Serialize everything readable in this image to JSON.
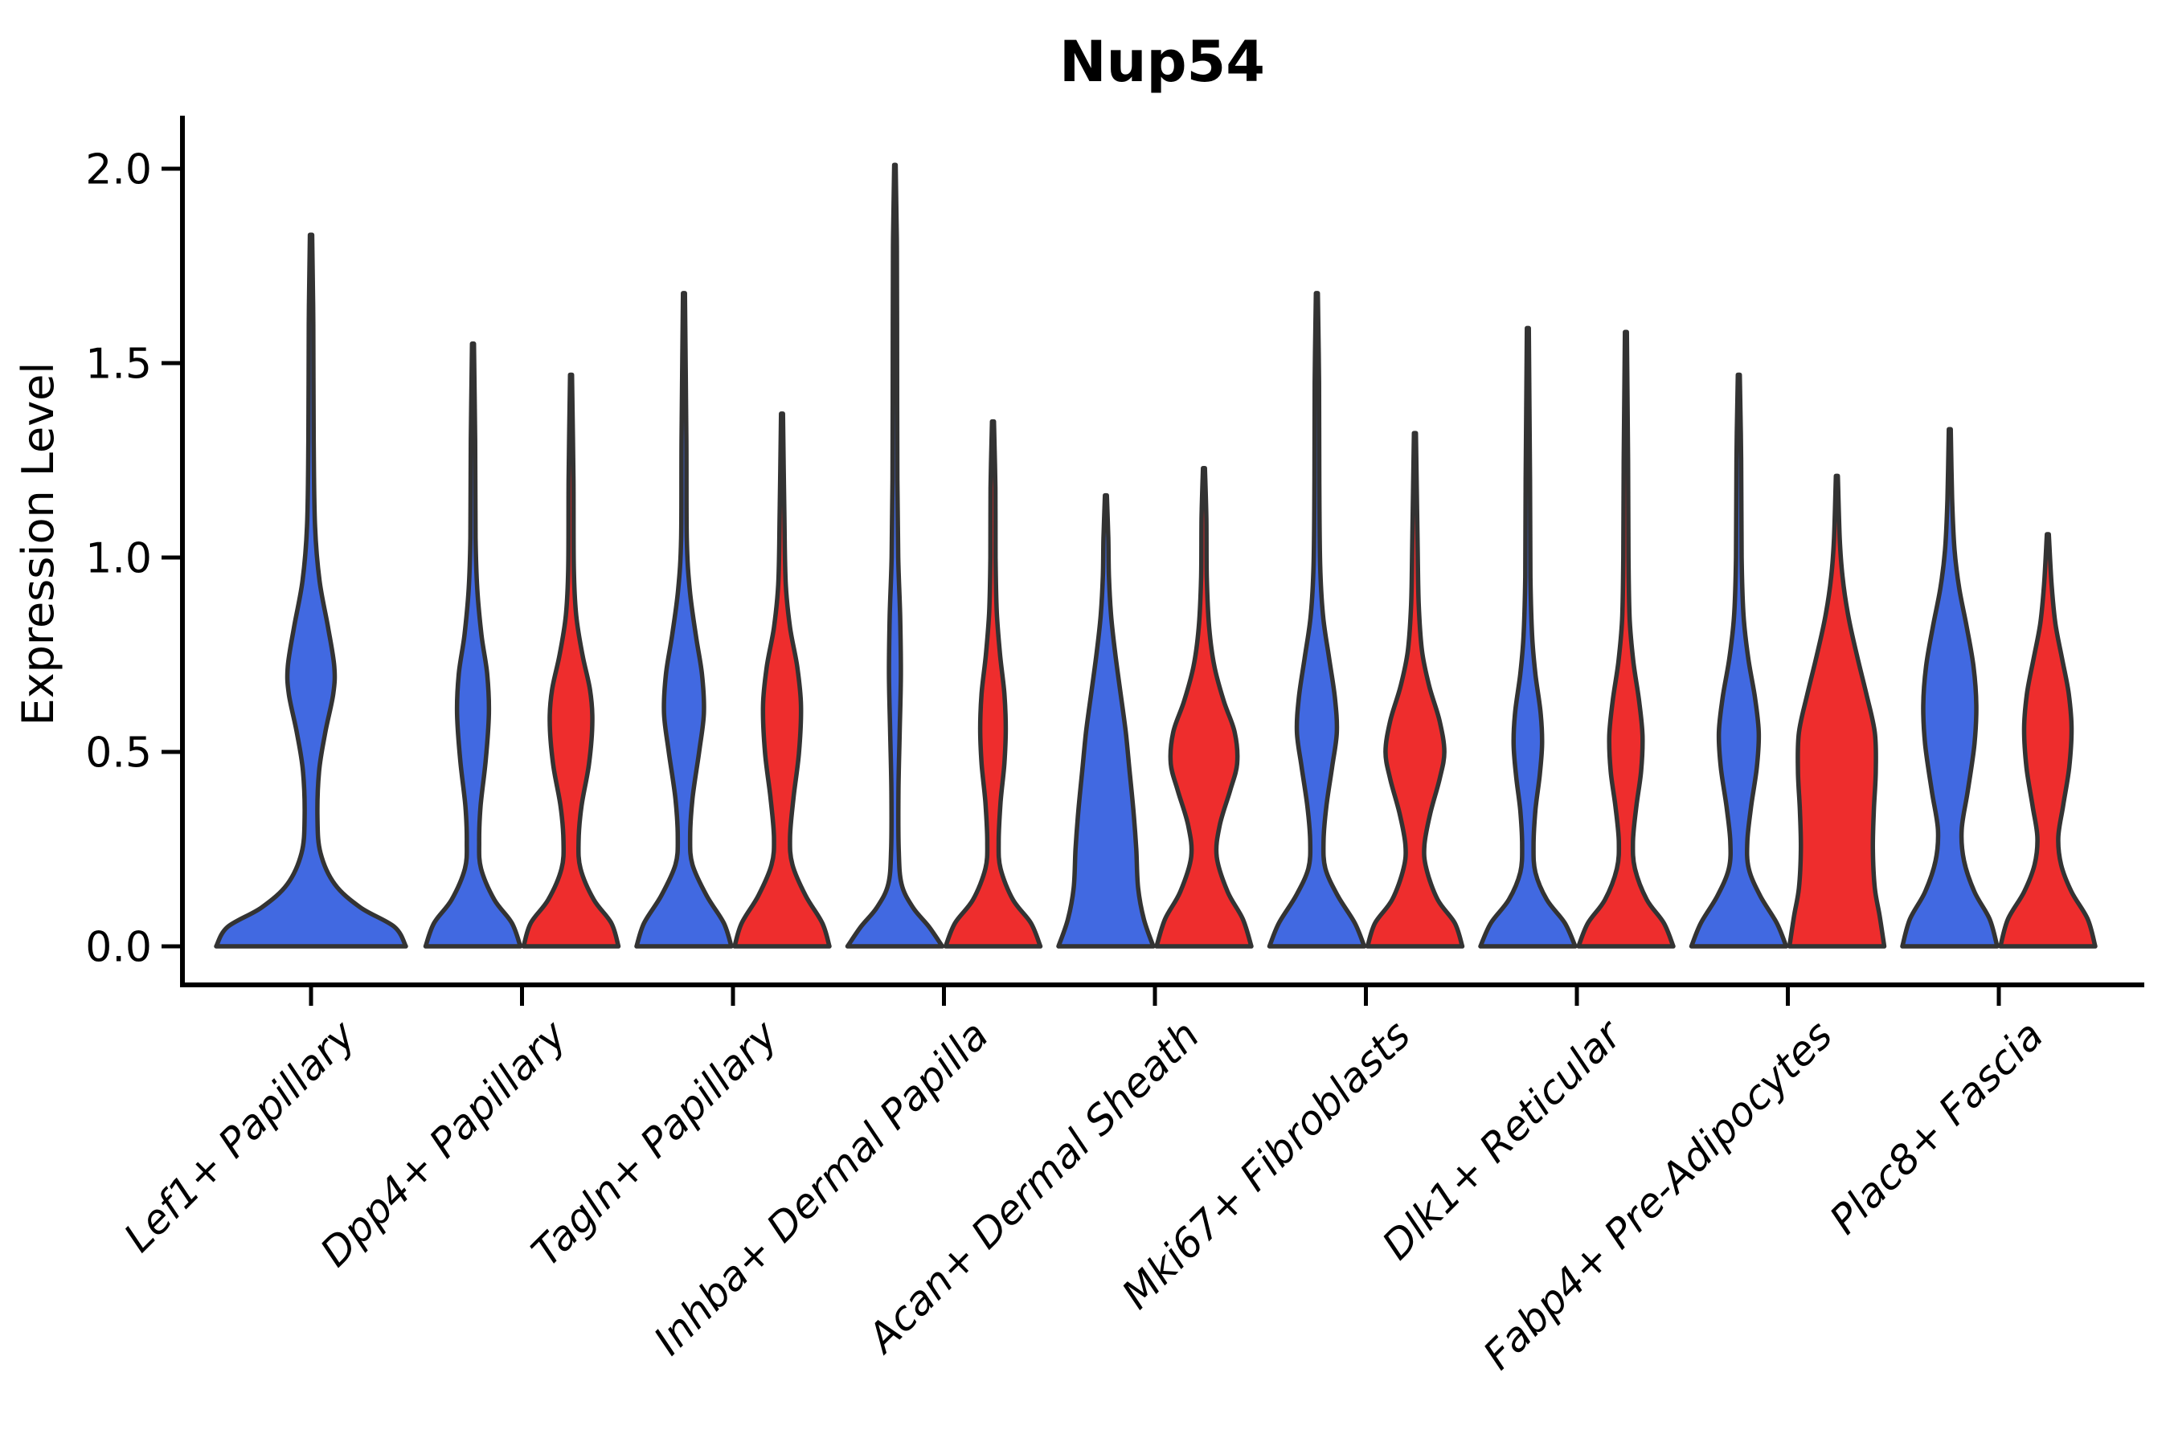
{
  "title": "Nup54",
  "y_axis": {
    "label": "Expression Level",
    "tick_labels": [
      "0.0",
      "0.5",
      "1.0",
      "1.5",
      "2.0"
    ],
    "tick_values": [
      0.0,
      0.5,
      1.0,
      1.5,
      2.0
    ]
  },
  "x_axis": {
    "categories": [
      "Lef1+ Papillary",
      "Dpp4+ Papillary",
      "Tagln+ Papillary",
      "Inhba+ Dermal Papilla",
      "Acan+ Dermal Sheath",
      "Mki67+ Fibroblasts",
      "Dlk1+ Reticular",
      "Fabp4+ Pre-Adipocytes",
      "Plac8+ Fascia"
    ]
  },
  "colors": {
    "blue": "#4169E1",
    "red": "#EE2D2D",
    "outline": "#333333",
    "axis": "#000000"
  },
  "chart_data": {
    "type": "violin",
    "title": "Nup54",
    "xlabel": "",
    "ylabel": "Expression Level",
    "ylim": [
      0,
      2.1
    ],
    "yticks": [
      0.0,
      0.5,
      1.0,
      1.5,
      2.0
    ],
    "grid": "off",
    "legend_position": "none",
    "categories": [
      "Lef1+ Papillary",
      "Dpp4+ Papillary",
      "Tagln+ Papillary",
      "Inhba+ Dermal Papilla",
      "Acan+ Dermal Sheath",
      "Mki67+ Fibroblasts",
      "Dlk1+ Reticular",
      "Fabp4+ Pre-Adipocytes",
      "Plac8+ Fascia"
    ],
    "series": [
      {
        "name": "blue",
        "color": "#4169E1",
        "max_expression": [
          1.83,
          1.55,
          1.68,
          2.01,
          1.16,
          1.68,
          1.59,
          1.47,
          1.33
        ]
      },
      {
        "name": "red",
        "color": "#EE2D2D",
        "max_expression": [
          null,
          1.47,
          1.37,
          1.35,
          1.23,
          1.32,
          1.58,
          1.21,
          1.06
        ]
      }
    ],
    "violins": [
      {
        "category_index": 0,
        "series": "blue",
        "side": "full",
        "profile": [
          [
            0,
            1.0
          ],
          [
            0.05,
            0.88
          ],
          [
            0.1,
            0.52
          ],
          [
            0.16,
            0.25
          ],
          [
            0.24,
            0.1
          ],
          [
            0.33,
            0.068
          ],
          [
            0.45,
            0.085
          ],
          [
            0.55,
            0.15
          ],
          [
            0.65,
            0.235
          ],
          [
            0.72,
            0.245
          ],
          [
            0.82,
            0.18
          ],
          [
            0.94,
            0.09
          ],
          [
            1.08,
            0.042
          ],
          [
            1.3,
            0.028
          ],
          [
            1.6,
            0.024
          ],
          [
            1.83,
            0.012
          ]
        ]
      },
      {
        "category_index": 1,
        "series": "blue",
        "side": "left",
        "profile": [
          [
            0,
            1.0
          ],
          [
            0.06,
            0.82
          ],
          [
            0.12,
            0.45
          ],
          [
            0.2,
            0.17
          ],
          [
            0.27,
            0.13
          ],
          [
            0.36,
            0.16
          ],
          [
            0.48,
            0.27
          ],
          [
            0.6,
            0.335
          ],
          [
            0.7,
            0.3
          ],
          [
            0.8,
            0.18
          ],
          [
            0.92,
            0.09
          ],
          [
            1.05,
            0.055
          ],
          [
            1.3,
            0.045
          ],
          [
            1.55,
            0.02
          ]
        ]
      },
      {
        "category_index": 1,
        "series": "red",
        "side": "right",
        "profile": [
          [
            0,
            1.0
          ],
          [
            0.06,
            0.85
          ],
          [
            0.12,
            0.48
          ],
          [
            0.2,
            0.2
          ],
          [
            0.27,
            0.16
          ],
          [
            0.36,
            0.22
          ],
          [
            0.47,
            0.38
          ],
          [
            0.58,
            0.45
          ],
          [
            0.66,
            0.4
          ],
          [
            0.75,
            0.24
          ],
          [
            0.85,
            0.11
          ],
          [
            0.97,
            0.06
          ],
          [
            1.2,
            0.05
          ],
          [
            1.47,
            0.02
          ]
        ]
      },
      {
        "category_index": 2,
        "series": "blue",
        "side": "left",
        "profile": [
          [
            0,
            1.0
          ],
          [
            0.06,
            0.84
          ],
          [
            0.13,
            0.48
          ],
          [
            0.21,
            0.18
          ],
          [
            0.28,
            0.13
          ],
          [
            0.38,
            0.18
          ],
          [
            0.5,
            0.32
          ],
          [
            0.6,
            0.42
          ],
          [
            0.7,
            0.38
          ],
          [
            0.8,
            0.25
          ],
          [
            0.92,
            0.12
          ],
          [
            1.05,
            0.06
          ],
          [
            1.3,
            0.05
          ],
          [
            1.68,
            0.02
          ]
        ]
      },
      {
        "category_index": 2,
        "series": "red",
        "side": "right",
        "profile": [
          [
            0,
            1.0
          ],
          [
            0.06,
            0.85
          ],
          [
            0.13,
            0.5
          ],
          [
            0.21,
            0.22
          ],
          [
            0.28,
            0.17
          ],
          [
            0.38,
            0.24
          ],
          [
            0.5,
            0.36
          ],
          [
            0.62,
            0.4
          ],
          [
            0.72,
            0.32
          ],
          [
            0.82,
            0.17
          ],
          [
            0.93,
            0.08
          ],
          [
            1.1,
            0.05
          ],
          [
            1.37,
            0.02
          ]
        ]
      },
      {
        "category_index": 3,
        "series": "blue",
        "side": "left",
        "profile": [
          [
            0,
            1.0
          ],
          [
            0.05,
            0.72
          ],
          [
            0.1,
            0.38
          ],
          [
            0.16,
            0.14
          ],
          [
            0.25,
            0.08
          ],
          [
            0.4,
            0.075
          ],
          [
            0.55,
            0.1
          ],
          [
            0.7,
            0.125
          ],
          [
            0.85,
            0.11
          ],
          [
            1.0,
            0.07
          ],
          [
            1.2,
            0.05
          ],
          [
            1.5,
            0.045
          ],
          [
            1.8,
            0.04
          ],
          [
            2.01,
            0.015
          ]
        ]
      },
      {
        "category_index": 3,
        "series": "red",
        "side": "right",
        "profile": [
          [
            0,
            1.0
          ],
          [
            0.06,
            0.8
          ],
          [
            0.12,
            0.42
          ],
          [
            0.2,
            0.16
          ],
          [
            0.27,
            0.12
          ],
          [
            0.37,
            0.16
          ],
          [
            0.47,
            0.24
          ],
          [
            0.56,
            0.27
          ],
          [
            0.65,
            0.24
          ],
          [
            0.75,
            0.15
          ],
          [
            0.86,
            0.08
          ],
          [
            1.0,
            0.055
          ],
          [
            1.18,
            0.05
          ],
          [
            1.35,
            0.02
          ]
        ]
      },
      {
        "category_index": 4,
        "series": "blue",
        "side": "left",
        "profile": [
          [
            0,
            1.0
          ],
          [
            0.07,
            0.8
          ],
          [
            0.15,
            0.68
          ],
          [
            0.25,
            0.64
          ],
          [
            0.35,
            0.58
          ],
          [
            0.45,
            0.5
          ],
          [
            0.55,
            0.42
          ],
          [
            0.65,
            0.31
          ],
          [
            0.75,
            0.2
          ],
          [
            0.85,
            0.11
          ],
          [
            0.95,
            0.065
          ],
          [
            1.05,
            0.05
          ],
          [
            1.16,
            0.02
          ]
        ]
      },
      {
        "category_index": 4,
        "series": "red",
        "side": "right",
        "profile": [
          [
            0,
            1.0
          ],
          [
            0.07,
            0.82
          ],
          [
            0.14,
            0.5
          ],
          [
            0.23,
            0.27
          ],
          [
            0.31,
            0.33
          ],
          [
            0.4,
            0.55
          ],
          [
            0.47,
            0.7
          ],
          [
            0.55,
            0.65
          ],
          [
            0.63,
            0.42
          ],
          [
            0.72,
            0.22
          ],
          [
            0.82,
            0.11
          ],
          [
            0.95,
            0.06
          ],
          [
            1.1,
            0.05
          ],
          [
            1.23,
            0.02
          ]
        ]
      },
      {
        "category_index": 5,
        "series": "blue",
        "side": "left",
        "profile": [
          [
            0,
            1.0
          ],
          [
            0.06,
            0.8
          ],
          [
            0.13,
            0.44
          ],
          [
            0.2,
            0.18
          ],
          [
            0.27,
            0.14
          ],
          [
            0.36,
            0.2
          ],
          [
            0.46,
            0.32
          ],
          [
            0.55,
            0.42
          ],
          [
            0.64,
            0.38
          ],
          [
            0.74,
            0.26
          ],
          [
            0.85,
            0.13
          ],
          [
            0.98,
            0.07
          ],
          [
            1.2,
            0.05
          ],
          [
            1.45,
            0.045
          ],
          [
            1.68,
            0.02
          ]
        ]
      },
      {
        "category_index": 5,
        "series": "red",
        "side": "right",
        "profile": [
          [
            0,
            1.0
          ],
          [
            0.06,
            0.84
          ],
          [
            0.12,
            0.48
          ],
          [
            0.2,
            0.24
          ],
          [
            0.26,
            0.2
          ],
          [
            0.34,
            0.32
          ],
          [
            0.43,
            0.52
          ],
          [
            0.5,
            0.62
          ],
          [
            0.58,
            0.52
          ],
          [
            0.67,
            0.3
          ],
          [
            0.76,
            0.15
          ],
          [
            0.88,
            0.08
          ],
          [
            1.05,
            0.055
          ],
          [
            1.32,
            0.02
          ]
        ]
      },
      {
        "category_index": 6,
        "series": "blue",
        "side": "left",
        "profile": [
          [
            0,
            1.0
          ],
          [
            0.06,
            0.78
          ],
          [
            0.12,
            0.4
          ],
          [
            0.19,
            0.16
          ],
          [
            0.26,
            0.12
          ],
          [
            0.35,
            0.16
          ],
          [
            0.44,
            0.25
          ],
          [
            0.52,
            0.3
          ],
          [
            0.6,
            0.27
          ],
          [
            0.7,
            0.16
          ],
          [
            0.8,
            0.09
          ],
          [
            0.95,
            0.055
          ],
          [
            1.2,
            0.045
          ],
          [
            1.59,
            0.02
          ]
        ]
      },
      {
        "category_index": 6,
        "series": "red",
        "side": "right",
        "profile": [
          [
            0,
            1.0
          ],
          [
            0.06,
            0.8
          ],
          [
            0.12,
            0.44
          ],
          [
            0.2,
            0.19
          ],
          [
            0.27,
            0.15
          ],
          [
            0.36,
            0.22
          ],
          [
            0.45,
            0.32
          ],
          [
            0.54,
            0.35
          ],
          [
            0.63,
            0.28
          ],
          [
            0.73,
            0.16
          ],
          [
            0.84,
            0.08
          ],
          [
            1.0,
            0.055
          ],
          [
            1.25,
            0.045
          ],
          [
            1.58,
            0.02
          ]
        ]
      },
      {
        "category_index": 7,
        "series": "blue",
        "side": "left",
        "profile": [
          [
            0,
            1.0
          ],
          [
            0.06,
            0.8
          ],
          [
            0.13,
            0.45
          ],
          [
            0.2,
            0.21
          ],
          [
            0.27,
            0.18
          ],
          [
            0.36,
            0.26
          ],
          [
            0.46,
            0.38
          ],
          [
            0.55,
            0.42
          ],
          [
            0.64,
            0.34
          ],
          [
            0.74,
            0.2
          ],
          [
            0.85,
            0.1
          ],
          [
            1.0,
            0.06
          ],
          [
            1.25,
            0.05
          ],
          [
            1.47,
            0.02
          ]
        ]
      },
      {
        "category_index": 7,
        "series": "red",
        "side": "right",
        "profile": [
          [
            0,
            1.0
          ],
          [
            0.08,
            0.9
          ],
          [
            0.15,
            0.8
          ],
          [
            0.25,
            0.76
          ],
          [
            0.35,
            0.78
          ],
          [
            0.45,
            0.82
          ],
          [
            0.55,
            0.8
          ],
          [
            0.65,
            0.62
          ],
          [
            0.75,
            0.42
          ],
          [
            0.85,
            0.24
          ],
          [
            0.95,
            0.12
          ],
          [
            1.05,
            0.06
          ],
          [
            1.21,
            0.02
          ]
        ]
      },
      {
        "category_index": 8,
        "series": "blue",
        "side": "left",
        "profile": [
          [
            0,
            1.0
          ],
          [
            0.07,
            0.84
          ],
          [
            0.14,
            0.52
          ],
          [
            0.22,
            0.3
          ],
          [
            0.3,
            0.25
          ],
          [
            0.4,
            0.38
          ],
          [
            0.52,
            0.52
          ],
          [
            0.62,
            0.56
          ],
          [
            0.72,
            0.5
          ],
          [
            0.82,
            0.36
          ],
          [
            0.92,
            0.2
          ],
          [
            1.02,
            0.1
          ],
          [
            1.15,
            0.05
          ],
          [
            1.33,
            0.02
          ]
        ]
      },
      {
        "category_index": 8,
        "series": "red",
        "side": "right",
        "profile": [
          [
            0,
            1.0
          ],
          [
            0.07,
            0.84
          ],
          [
            0.14,
            0.5
          ],
          [
            0.21,
            0.28
          ],
          [
            0.28,
            0.22
          ],
          [
            0.36,
            0.32
          ],
          [
            0.46,
            0.45
          ],
          [
            0.56,
            0.5
          ],
          [
            0.65,
            0.44
          ],
          [
            0.74,
            0.3
          ],
          [
            0.83,
            0.16
          ],
          [
            0.93,
            0.08
          ],
          [
            1.06,
            0.02
          ]
        ]
      }
    ]
  }
}
